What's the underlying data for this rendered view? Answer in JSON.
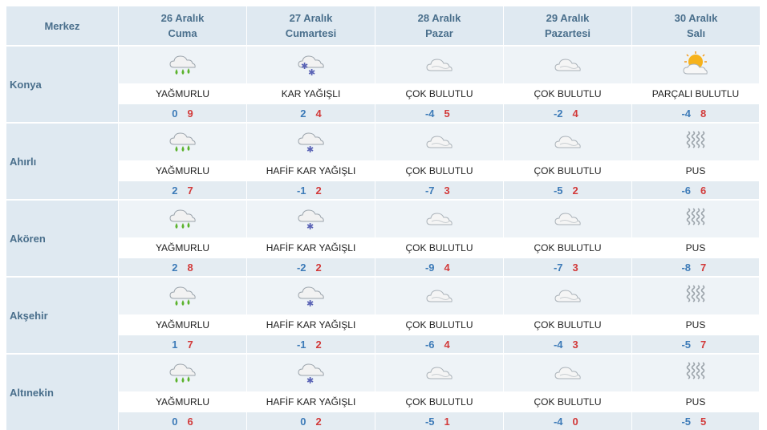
{
  "header": {
    "merkez_label": "Merkez",
    "days": [
      {
        "date": "26 Aralık",
        "weekday": "Cuma"
      },
      {
        "date": "27 Aralık",
        "weekday": "Cumartesi"
      },
      {
        "date": "28 Aralık",
        "weekday": "Pazar"
      },
      {
        "date": "29 Aralık",
        "weekday": "Pazartesi"
      },
      {
        "date": "30 Aralık",
        "weekday": "Salı"
      }
    ]
  },
  "rows": [
    {
      "city": "Konya",
      "days": [
        {
          "icon": "rain-cloud-icon",
          "desc": "YAĞMURLU",
          "min": "0",
          "max": "9"
        },
        {
          "icon": "snow-cloud-icon",
          "desc": "KAR YAĞIŞLI",
          "min": "2",
          "max": "4"
        },
        {
          "icon": "cloudy-icon",
          "desc": "ÇOK BULUTLU",
          "min": "-4",
          "max": "5"
        },
        {
          "icon": "cloudy-icon",
          "desc": "ÇOK BULUTLU",
          "min": "-2",
          "max": "4"
        },
        {
          "icon": "partly-cloudy-icon",
          "desc": "PARÇALI BULUTLU",
          "min": "-4",
          "max": "8"
        }
      ]
    },
    {
      "city": "Ahırlı",
      "days": [
        {
          "icon": "rain-cloud-icon",
          "desc": "YAĞMURLU",
          "min": "2",
          "max": "7"
        },
        {
          "icon": "light-snow-cloud-icon",
          "desc": "HAFİF KAR YAĞIŞLI",
          "min": "-1",
          "max": "2"
        },
        {
          "icon": "cloudy-icon",
          "desc": "ÇOK BULUTLU",
          "min": "-7",
          "max": "3"
        },
        {
          "icon": "cloudy-icon",
          "desc": "ÇOK BULUTLU",
          "min": "-5",
          "max": "2"
        },
        {
          "icon": "fog-icon",
          "desc": "PUS",
          "min": "-6",
          "max": "6"
        }
      ]
    },
    {
      "city": "Akören",
      "days": [
        {
          "icon": "rain-cloud-icon",
          "desc": "YAĞMURLU",
          "min": "2",
          "max": "8"
        },
        {
          "icon": "light-snow-cloud-icon",
          "desc": "HAFİF KAR YAĞIŞLI",
          "min": "-2",
          "max": "2"
        },
        {
          "icon": "cloudy-icon",
          "desc": "ÇOK BULUTLU",
          "min": "-9",
          "max": "4"
        },
        {
          "icon": "cloudy-icon",
          "desc": "ÇOK BULUTLU",
          "min": "-7",
          "max": "3"
        },
        {
          "icon": "fog-icon",
          "desc": "PUS",
          "min": "-8",
          "max": "7"
        }
      ]
    },
    {
      "city": "Akşehir",
      "days": [
        {
          "icon": "rain-cloud-icon",
          "desc": "YAĞMURLU",
          "min": "1",
          "max": "7"
        },
        {
          "icon": "light-snow-cloud-icon",
          "desc": "HAFİF KAR YAĞIŞLI",
          "min": "-1",
          "max": "2"
        },
        {
          "icon": "cloudy-icon",
          "desc": "ÇOK BULUTLU",
          "min": "-6",
          "max": "4"
        },
        {
          "icon": "cloudy-icon",
          "desc": "ÇOK BULUTLU",
          "min": "-4",
          "max": "3"
        },
        {
          "icon": "fog-icon",
          "desc": "PUS",
          "min": "-5",
          "max": "7"
        }
      ]
    },
    {
      "city": "Altınekin",
      "days": [
        {
          "icon": "rain-cloud-icon",
          "desc": "YAĞMURLU",
          "min": "0",
          "max": "6"
        },
        {
          "icon": "light-snow-cloud-icon",
          "desc": "HAFİF KAR YAĞIŞLI",
          "min": "0",
          "max": "2"
        },
        {
          "icon": "cloudy-icon",
          "desc": "ÇOK BULUTLU",
          "min": "-5",
          "max": "1"
        },
        {
          "icon": "cloudy-icon",
          "desc": "ÇOK BULUTLU",
          "min": "-4",
          "max": "0"
        },
        {
          "icon": "fog-icon",
          "desc": "PUS",
          "min": "-5",
          "max": "5"
        }
      ]
    }
  ],
  "colors": {
    "header_bg": "#dfe9f1",
    "header_text": "#4a6f8c",
    "temp_row_bg": "#e4ecf2",
    "min_color": "#3d7bb8",
    "max_color": "#d23a3a"
  }
}
